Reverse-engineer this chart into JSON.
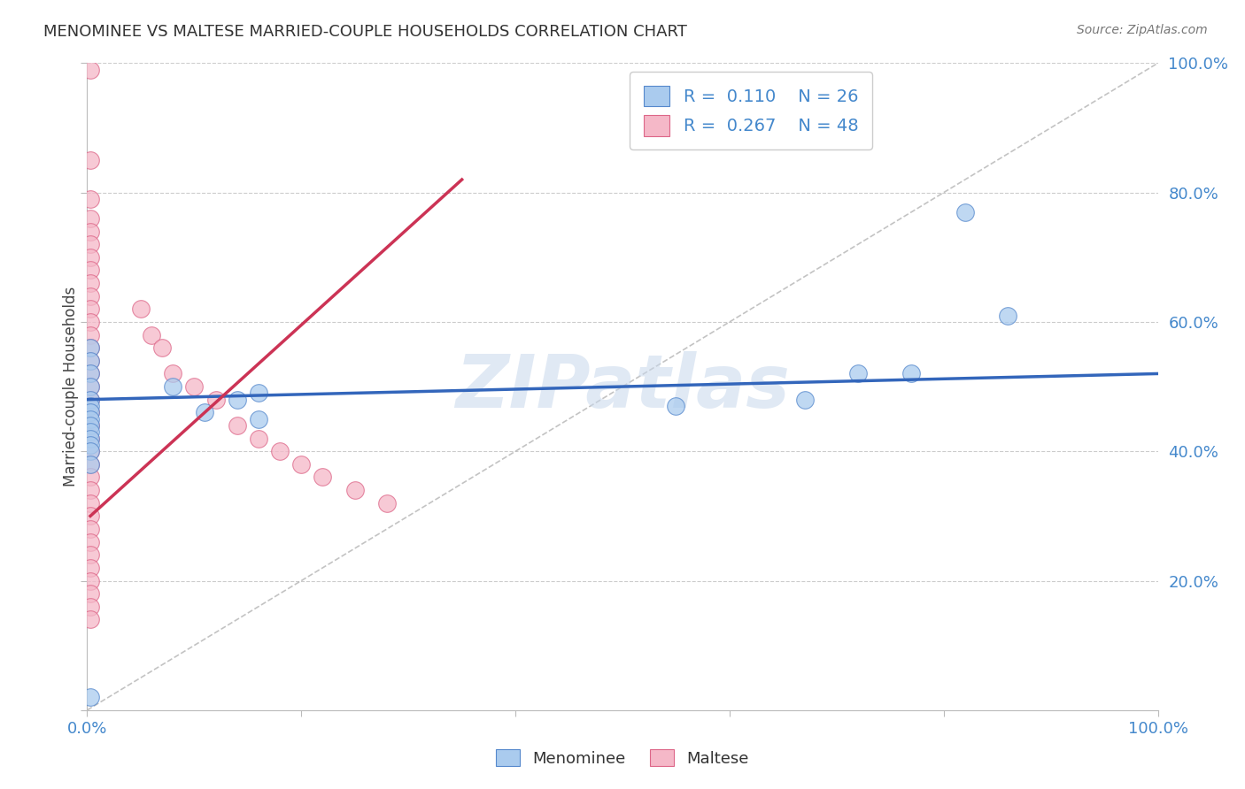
{
  "title": "MENOMINEE VS MALTESE MARRIED-COUPLE HOUSEHOLDS CORRELATION CHART",
  "source_text": "Source: ZipAtlas.com",
  "ylabel": "Married-couple Households",
  "xlim": [
    0.0,
    1.0
  ],
  "ylim": [
    0.0,
    1.0
  ],
  "menominee_r": 0.11,
  "menominee_n": 26,
  "maltese_r": 0.267,
  "maltese_n": 48,
  "menominee_color": "#aacbee",
  "maltese_color": "#f5b8c8",
  "menominee_edge": "#5588cc",
  "maltese_edge": "#dd6688",
  "blue_line_color": "#3366bb",
  "pink_line_color": "#cc3355",
  "grid_color": "#cccccc",
  "axis_label_color": "#4488cc",
  "title_color": "#333333",
  "menominee_x": [
    0.003,
    0.003,
    0.003,
    0.003,
    0.003,
    0.003,
    0.003,
    0.003,
    0.003,
    0.003,
    0.003,
    0.003,
    0.003,
    0.003,
    0.08,
    0.11,
    0.14,
    0.16,
    0.16,
    0.55,
    0.67,
    0.72,
    0.77,
    0.82,
    0.86,
    0.003
  ],
  "menominee_y": [
    0.56,
    0.54,
    0.52,
    0.5,
    0.48,
    0.47,
    0.46,
    0.45,
    0.44,
    0.43,
    0.42,
    0.41,
    0.4,
    0.38,
    0.5,
    0.46,
    0.48,
    0.49,
    0.45,
    0.47,
    0.48,
    0.52,
    0.52,
    0.77,
    0.61,
    0.02
  ],
  "maltese_x": [
    0.003,
    0.003,
    0.003,
    0.003,
    0.003,
    0.003,
    0.003,
    0.003,
    0.003,
    0.003,
    0.003,
    0.003,
    0.003,
    0.003,
    0.003,
    0.003,
    0.003,
    0.003,
    0.003,
    0.003,
    0.003,
    0.003,
    0.003,
    0.003,
    0.003,
    0.003,
    0.003,
    0.003,
    0.003,
    0.003,
    0.05,
    0.06,
    0.07,
    0.08,
    0.1,
    0.12,
    0.14,
    0.16,
    0.18,
    0.2,
    0.22,
    0.25,
    0.28,
    0.003,
    0.003,
    0.003,
    0.003,
    0.003
  ],
  "maltese_y": [
    0.99,
    0.85,
    0.79,
    0.76,
    0.74,
    0.72,
    0.7,
    0.68,
    0.66,
    0.64,
    0.62,
    0.6,
    0.58,
    0.56,
    0.54,
    0.52,
    0.5,
    0.48,
    0.46,
    0.44,
    0.42,
    0.4,
    0.38,
    0.36,
    0.34,
    0.32,
    0.3,
    0.28,
    0.26,
    0.24,
    0.62,
    0.58,
    0.56,
    0.52,
    0.5,
    0.48,
    0.44,
    0.42,
    0.4,
    0.38,
    0.36,
    0.34,
    0.32,
    0.22,
    0.2,
    0.18,
    0.16,
    0.14
  ],
  "blue_line_x": [
    0.0,
    1.0
  ],
  "blue_line_y": [
    0.48,
    0.52
  ],
  "pink_line_x": [
    0.003,
    0.35
  ],
  "pink_line_y": [
    0.3,
    0.82
  ],
  "diag_line_x": [
    0.0,
    1.0
  ],
  "diag_line_y": [
    0.0,
    1.0
  ]
}
